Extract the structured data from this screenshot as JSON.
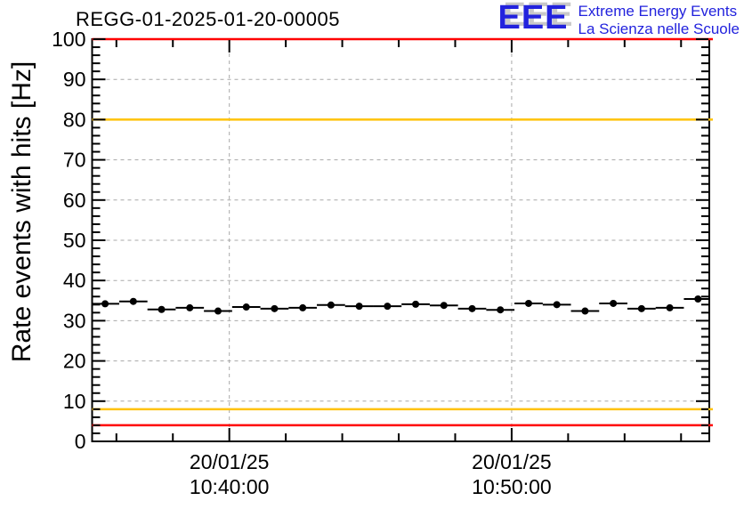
{
  "header": {
    "title": "REGG-01-2025-01-20-00005"
  },
  "logo": {
    "acronym": "EEE",
    "line1": "Extreme Energy Events",
    "line2": "La Scienza nelle Scuole",
    "color": "#2222dd",
    "shadow_color": "#c9c9c9"
  },
  "chart_data": {
    "type": "line",
    "title": "REGG-01-2025-01-20-00005",
    "xlabel": "",
    "ylabel": "Rate events with hits [Hz]",
    "ylim": [
      0,
      100
    ],
    "y_major_ticks": [
      0,
      10,
      20,
      30,
      40,
      50,
      60,
      70,
      80,
      90,
      100
    ],
    "y_minor_step": 2,
    "x_axis": {
      "unit": "minutes relative to 10:40:00",
      "domain": [
        -4.86,
        17.0
      ],
      "major_ticks": [
        {
          "offset_min": 0,
          "date": "20/01/25",
          "time": "10:40:00"
        },
        {
          "offset_min": 10,
          "date": "20/01/25",
          "time": "10:50:00"
        }
      ],
      "minor_tick_offsets_min": [
        -4,
        -2,
        0,
        2,
        4,
        6,
        8,
        10,
        12,
        14,
        16
      ]
    },
    "grid": {
      "show": true,
      "style": "dashed",
      "color": "#a8a8a8"
    },
    "frame_color": "#000000",
    "thresholds": [
      {
        "name": "upper-alarm",
        "y_hz": 100,
        "color": "#ff0000"
      },
      {
        "name": "upper-warning",
        "y_hz": 80,
        "color": "#ffc20a"
      },
      {
        "name": "lower-warning",
        "y_hz": 8,
        "color": "#ffc20a"
      },
      {
        "name": "lower-alarm",
        "y_hz": 4,
        "color": "#ff0000"
      }
    ],
    "series": [
      {
        "name": "rate-events-with-hits",
        "marker": "filled-circle",
        "color": "#000000",
        "x_bin_halfwidth_min": 0.5,
        "points_t_hz": [
          [
            -4.4,
            34.2
          ],
          [
            -3.4,
            34.8
          ],
          [
            -2.4,
            32.8
          ],
          [
            -1.4,
            33.2
          ],
          [
            -0.4,
            32.4
          ],
          [
            0.6,
            33.4
          ],
          [
            1.6,
            33.0
          ],
          [
            2.6,
            33.2
          ],
          [
            3.6,
            33.9
          ],
          [
            4.6,
            33.6
          ],
          [
            5.6,
            33.6
          ],
          [
            6.6,
            34.1
          ],
          [
            7.6,
            33.8
          ],
          [
            8.6,
            33.0
          ],
          [
            9.6,
            32.7
          ],
          [
            10.6,
            34.3
          ],
          [
            11.6,
            34.0
          ],
          [
            12.6,
            32.4
          ],
          [
            13.6,
            34.3
          ],
          [
            14.6,
            33.0
          ],
          [
            15.6,
            33.2
          ],
          [
            16.6,
            35.4
          ]
        ]
      }
    ]
  }
}
